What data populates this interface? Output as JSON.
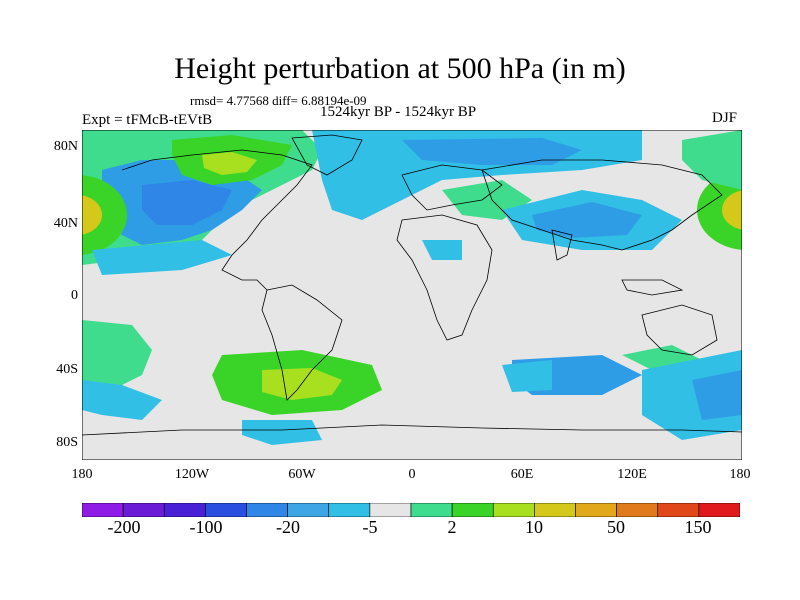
{
  "title": "Height perturbation at 500 hPa (in m)",
  "stats": "rmsd= 4.77568 diff= 6.88194e-09",
  "left_label": "Expt = tFMcB-tEVtB",
  "center_label": "1524kyr BP - 1524kyr BP",
  "right_label": "DJF",
  "lat_labels": [
    "80N",
    "40N",
    "0",
    "40S",
    "80S"
  ],
  "lon_labels": [
    "180",
    "120W",
    "60W",
    "0",
    "60E",
    "120E",
    "180"
  ],
  "colorbar": {
    "labels": [
      "-200",
      "-100",
      "-20",
      "-5",
      "2",
      "10",
      "50",
      "150"
    ],
    "colors": [
      "#8f1be6",
      "#6a1bd6",
      "#4a20d6",
      "#2a4fe0",
      "#2f86e6",
      "#3fa6e6",
      "#31bfe5",
      "#e6e6e6",
      "#3fdc8e",
      "#3ad428",
      "#a8e01f",
      "#d4c81a",
      "#e0a81a",
      "#e07a1a",
      "#e0481a",
      "#e01a1a"
    ]
  },
  "colors": {
    "background": "#e6e6e6",
    "light_blue": "#31bfe5",
    "mid_blue": "#2f9de6",
    "blue": "#2f86e6",
    "green": "#3fdc8e",
    "bright_green": "#3ad428",
    "yellow_green": "#a8e01f",
    "gold": "#d4c81a"
  }
}
